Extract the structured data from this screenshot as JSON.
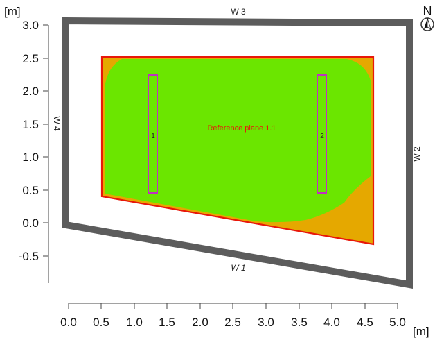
{
  "axes": {
    "x_unit": "[m]",
    "y_unit": "[m]",
    "x_ticks": [
      "0.0",
      "0.5",
      "1.0",
      "1.5",
      "2.0",
      "2.5",
      "3.0",
      "3.5",
      "4.0",
      "4.5",
      "5.0"
    ],
    "y_ticks": [
      "3.0",
      "2.5",
      "2.0",
      "1.5",
      "1.0",
      "0.5",
      "0.0",
      "-0.5"
    ]
  },
  "walls": [
    {
      "label": "W 1"
    },
    {
      "label": "W 2"
    },
    {
      "label": "W 3"
    },
    {
      "label": "W 4"
    }
  ],
  "reference_plane": {
    "label": "Reference plane 1.1",
    "label_color": "#e8170a"
  },
  "luminaires": [
    {
      "label": "1"
    },
    {
      "label": "2"
    }
  ],
  "compass": {
    "label": "N",
    "icon": "north-arrow-icon"
  },
  "colors": {
    "wall": "#5c5c5c",
    "plane_fill": "#e5a800",
    "plane_outline": "#e8170a",
    "isoline_fill": "#6be600",
    "luminaire_outline": "#c030c0"
  }
}
